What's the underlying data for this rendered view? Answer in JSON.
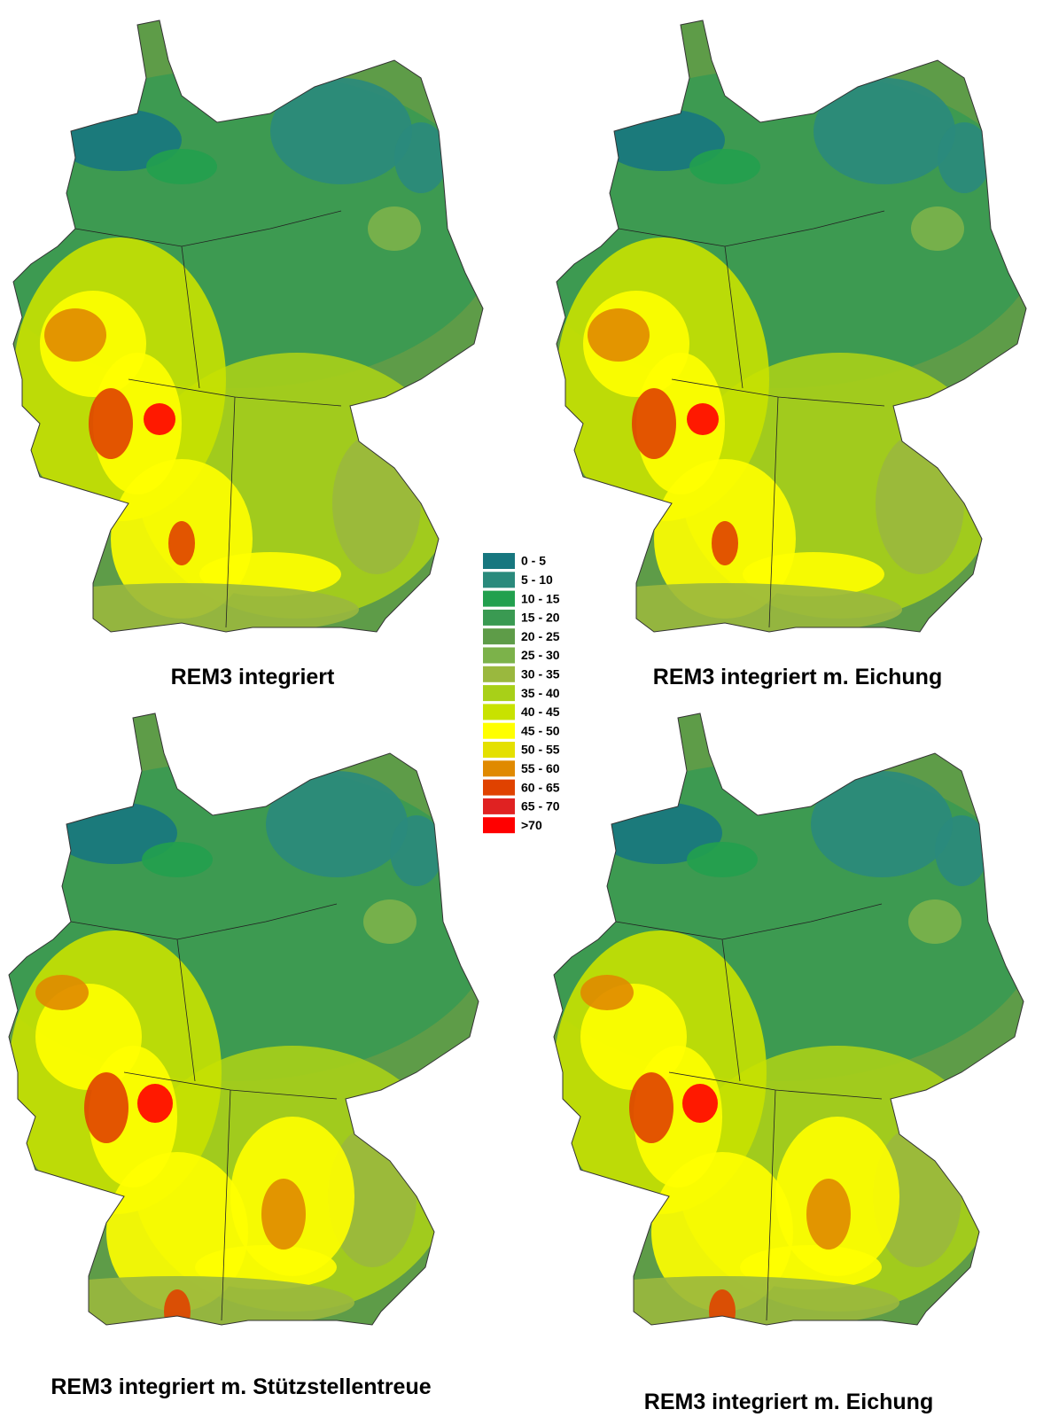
{
  "maps": [
    {
      "title": "REM3 integriert"
    },
    {
      "title": "REM3 integriert m. Eichung"
    },
    {
      "title": "REM3 integriert m. Stützstellentreue"
    },
    {
      "title": "REM3 integriert m. Eichung"
    }
  ],
  "legend": {
    "items": [
      {
        "label": "0 - 5",
        "color": "#17777f"
      },
      {
        "label": "5 - 10",
        "color": "#2a8a7c"
      },
      {
        "label": "10 - 15",
        "color": "#22a04e"
      },
      {
        "label": "15 - 20",
        "color": "#3a9a52"
      },
      {
        "label": "20 - 25",
        "color": "#5e9c48"
      },
      {
        "label": "25 - 30",
        "color": "#7cb24a"
      },
      {
        "label": "30 - 35",
        "color": "#9ab83e"
      },
      {
        "label": "35 - 40",
        "color": "#a8d018"
      },
      {
        "label": "40 - 45",
        "color": "#c8e200"
      },
      {
        "label": "45 - 50",
        "color": "#ffff00"
      },
      {
        "label": "50 - 55",
        "color": "#e4e000"
      },
      {
        "label": "55 - 60",
        "color": "#e08a00"
      },
      {
        "label": "60 - 65",
        "color": "#e04200"
      },
      {
        "label": "65 - 70",
        "color": "#e02222"
      },
      {
        "label": ">70",
        "color": "#ff0000"
      }
    ]
  }
}
